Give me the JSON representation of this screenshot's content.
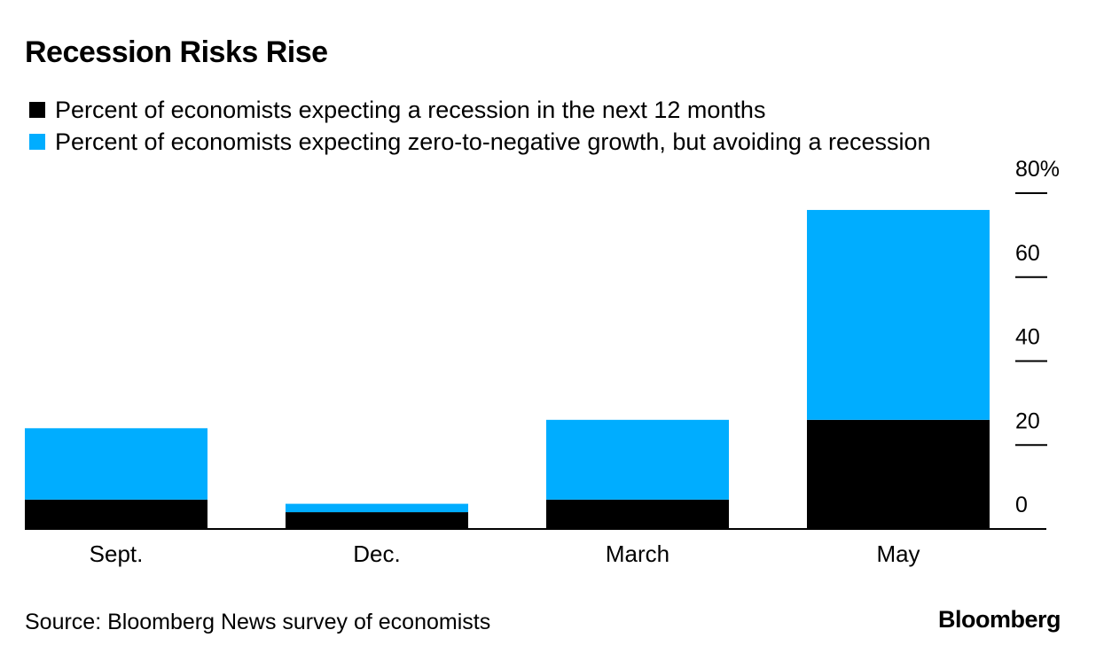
{
  "title": "Recession Risks Rise",
  "legend": [
    {
      "label": "Percent of economists expecting a recession in the next 12 months",
      "color": "#000000"
    },
    {
      "label": "Percent of economists expecting zero-to-negative growth, but avoiding a recession",
      "color": "#00adff"
    }
  ],
  "source": "Source: Bloomberg News survey of economists",
  "brand": "Bloomberg",
  "chart_data": {
    "type": "bar",
    "stacked": true,
    "categories": [
      "Sept.",
      "Dec.",
      "March",
      "May"
    ],
    "series": [
      {
        "name": "Percent of economists expecting a recession in the next 12 months",
        "color": "#000000",
        "values": [
          7,
          4,
          7,
          26
        ]
      },
      {
        "name": "Percent of economists expecting zero-to-negative growth, but avoiding a recession",
        "color": "#00adff",
        "values": [
          17,
          2,
          19,
          50
        ]
      }
    ],
    "yticks": [
      "0",
      "20",
      "40",
      "60",
      "80%"
    ],
    "ylim": [
      0,
      80
    ],
    "y_axis_side": "right",
    "grid": false
  }
}
